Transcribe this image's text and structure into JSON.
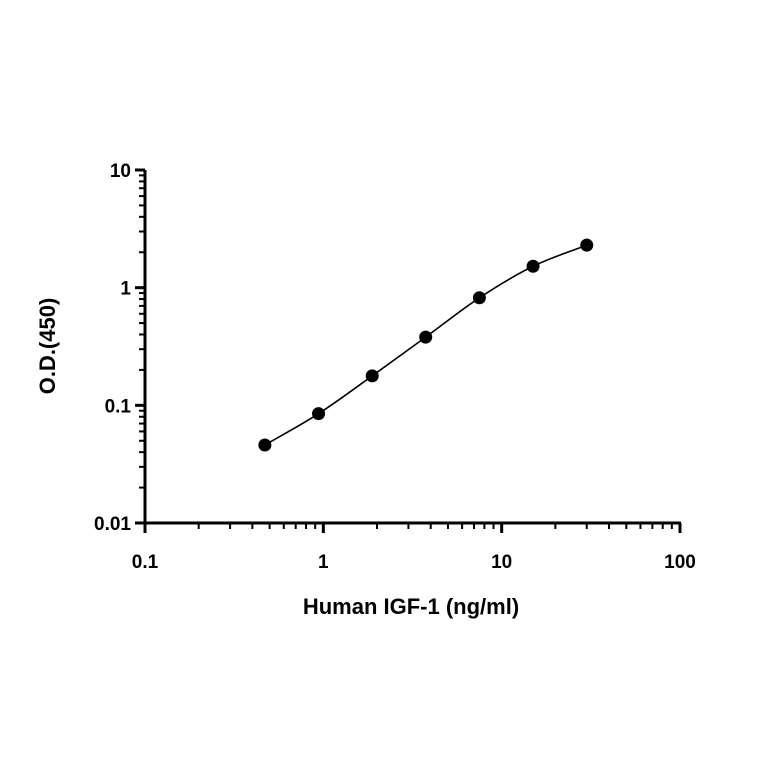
{
  "chart_data": {
    "type": "scatter",
    "title": "",
    "xlabel": "Human IGF-1 (ng/ml)",
    "ylabel": "O.D.(450)",
    "xscale": "log",
    "yscale": "log",
    "xlim": [
      0.1,
      100
    ],
    "ylim": [
      0.01,
      10
    ],
    "x_ticks": [
      0.1,
      1,
      10,
      100
    ],
    "x_tick_labels": [
      "0.1",
      "1",
      "10",
      "100"
    ],
    "y_ticks": [
      0.01,
      0.1,
      1,
      10
    ],
    "y_tick_labels": [
      "0.01",
      "0.1",
      "1",
      "10"
    ],
    "grid": false,
    "legend": "none",
    "fit_curve": true,
    "colors": {
      "marker": "#000000",
      "curve": "#000000",
      "axis": "#000000"
    },
    "series": [
      {
        "x": [
          0.47,
          0.94,
          1.88,
          3.75,
          7.5,
          15,
          30
        ],
        "y": [
          0.046,
          0.085,
          0.178,
          0.38,
          0.82,
          1.52,
          2.3
        ]
      }
    ]
  }
}
